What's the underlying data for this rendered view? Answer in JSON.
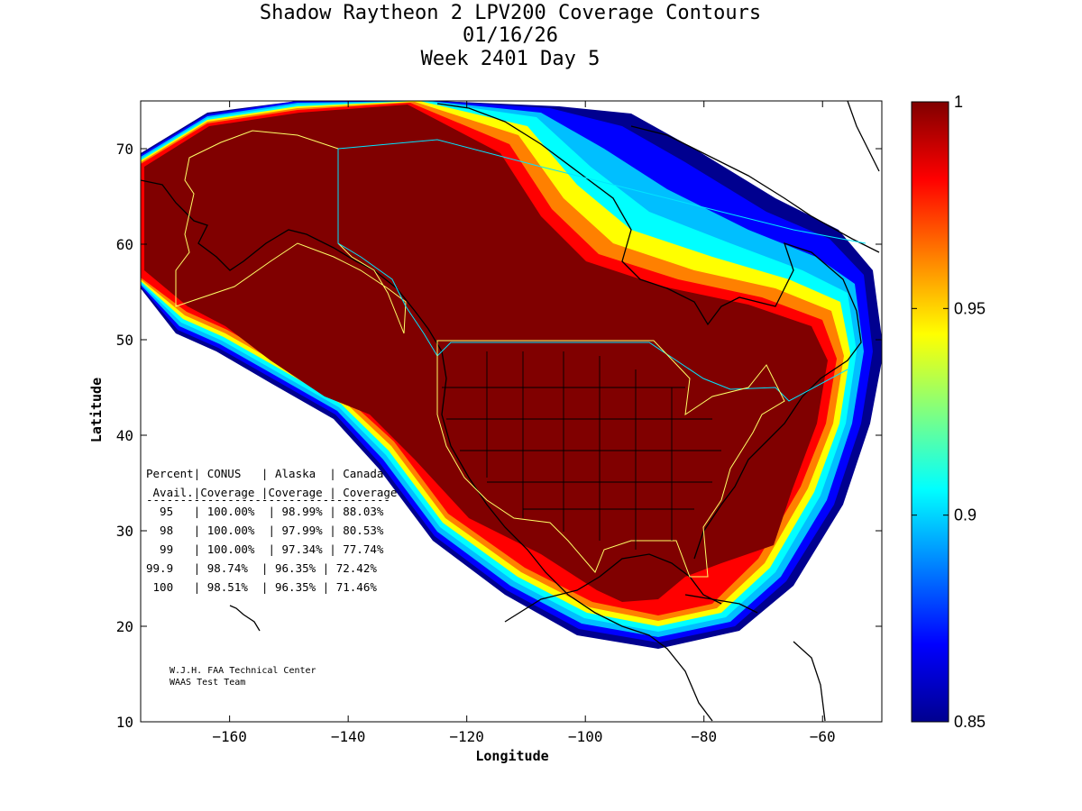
{
  "chart_data": {
    "type": "heatmap",
    "title": [
      "Shadow Raytheon 2 LPV200 Coverage Contours",
      "01/16/26",
      "Week 2401 Day 5"
    ],
    "xlabel": "Longitude",
    "ylabel": "Latitude",
    "xlim": [
      -175,
      -50
    ],
    "ylim": [
      10,
      75
    ],
    "xticks": [
      -160,
      -140,
      -120,
      -100,
      -80,
      -60
    ],
    "yticks": [
      10,
      20,
      30,
      40,
      50,
      60,
      70
    ],
    "colorbar": {
      "range": [
        0.85,
        1
      ],
      "ticks": [
        {
          "value": 1,
          "label": "1"
        },
        {
          "value": 0.95,
          "label": "0.95"
        },
        {
          "value": 0.9,
          "label": "0.9"
        },
        {
          "value": 0.85,
          "label": "0.85"
        }
      ],
      "colors": [
        "#00008f",
        "#0000ff",
        "#0080ff",
        "#00ffff",
        "#80ff80",
        "#ffff00",
        "#ff8000",
        "#ff0000",
        "#800000"
      ]
    },
    "coverage_table": {
      "header1": "Percent| CONUS   | Alaska  | Canada",
      "header2": " Avail.|Coverage |Coverage | Coverage",
      "separator": "------------------------------------",
      "rows": [
        "  95   | 100.00%  | 98.99% | 88.03%",
        "  98   | 100.00%  | 97.99% | 80.53%",
        "  99   | 100.00%  | 97.34% | 77.74%",
        "99.9   | 98.74%  | 96.35% | 72.42%",
        " 100   | 98.51%  | 96.35% | 71.46%"
      ]
    },
    "credit": [
      "W.J.H. FAA Technical Center",
      "WAAS Test Team"
    ]
  }
}
